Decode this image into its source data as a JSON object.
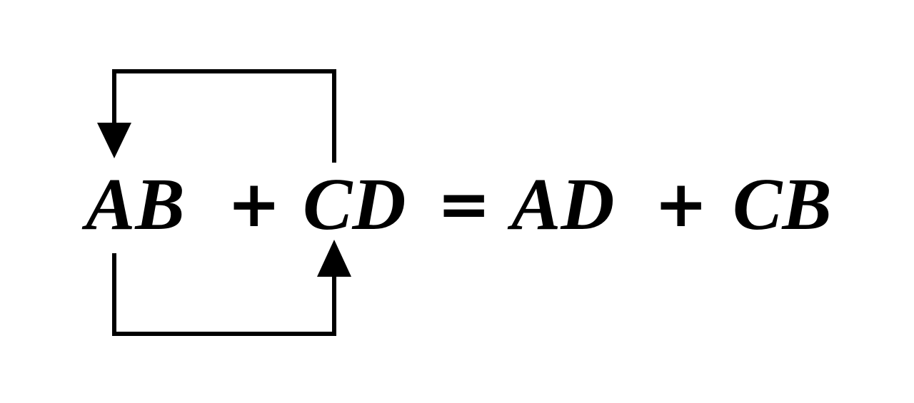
{
  "equation": {
    "term1": "AB",
    "plus1": "+",
    "term2": "CD",
    "equals": "=",
    "term3": "AD",
    "plus2": "+",
    "term4": "CB"
  },
  "colors": {
    "ink": "#000000",
    "background": "#ffffff"
  }
}
